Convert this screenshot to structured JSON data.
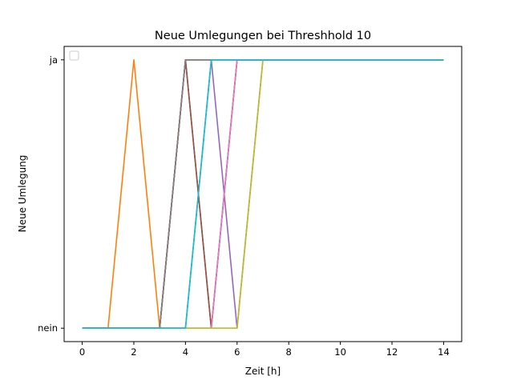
{
  "chart_data": {
    "type": "line",
    "title": "Neue Umlegungen bei Threshhold 10",
    "xlabel": "Zeit [h]",
    "ylabel": "Neue Umlegung",
    "xlim": [
      -0.7,
      14.7
    ],
    "ylim": [
      -0.05,
      1.05
    ],
    "xticks": [
      0,
      2,
      4,
      6,
      8,
      10,
      12,
      14
    ],
    "yticks": [
      {
        "value": 0,
        "label": "nein"
      },
      {
        "value": 1,
        "label": "ja"
      }
    ],
    "grid": false,
    "legend": {
      "placement": "upper-left",
      "entries": []
    },
    "x": [
      0,
      1,
      2,
      3,
      4,
      5,
      6,
      7,
      8,
      9,
      10,
      11,
      12,
      13,
      14
    ],
    "series": [
      {
        "color": "#1f77b4",
        "values": [
          0,
          0,
          0,
          0,
          0,
          1,
          1,
          1,
          1,
          1,
          1,
          1,
          1,
          1,
          1
        ]
      },
      {
        "color": "#ff7f0e",
        "values": [
          0,
          0,
          1,
          0,
          1,
          1,
          1,
          1,
          1,
          1,
          1,
          1,
          1,
          1,
          1
        ]
      },
      {
        "color": "#2ca02c",
        "values": [
          0,
          0,
          0,
          0,
          1,
          1,
          1,
          1,
          1,
          1,
          1,
          1,
          1,
          1,
          1
        ]
      },
      {
        "color": "#d62728",
        "values": [
          0,
          0,
          0,
          0,
          1,
          0,
          1,
          1,
          1,
          1,
          1,
          1,
          1,
          1,
          1
        ]
      },
      {
        "color": "#9467bd",
        "values": [
          0,
          0,
          0,
          0,
          1,
          1,
          0,
          1,
          1,
          1,
          1,
          1,
          1,
          1,
          1
        ]
      },
      {
        "color": "#8c564b",
        "values": [
          0,
          0,
          0,
          0,
          1,
          0,
          1,
          1,
          1,
          1,
          1,
          1,
          1,
          1,
          1
        ]
      },
      {
        "color": "#e377c2",
        "values": [
          0,
          0,
          0,
          0,
          0,
          0,
          1,
          1,
          1,
          1,
          1,
          1,
          1,
          1,
          1
        ]
      },
      {
        "color": "#7f7f7f",
        "values": [
          0,
          0,
          0,
          0,
          1,
          1,
          1,
          1,
          1,
          1,
          1,
          1,
          1,
          1,
          1
        ]
      },
      {
        "color": "#bcbd22",
        "values": [
          0,
          0,
          0,
          0,
          0,
          0,
          0,
          1,
          1,
          1,
          1,
          1,
          1,
          1,
          1
        ]
      },
      {
        "color": "#17becf",
        "values": [
          0,
          0,
          0,
          0,
          0,
          1,
          1,
          1,
          1,
          1,
          1,
          1,
          1,
          1,
          1
        ]
      }
    ]
  }
}
